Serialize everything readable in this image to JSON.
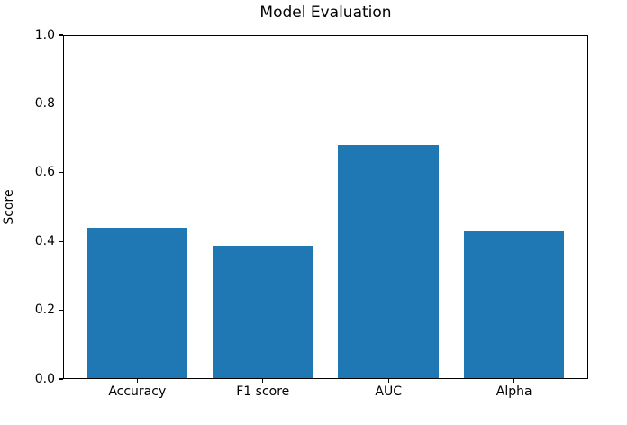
{
  "chart_data": {
    "type": "bar",
    "title": "Model Evaluation",
    "xlabel": "",
    "ylabel": "Score",
    "categories": [
      "Accuracy",
      "F1 score",
      "AUC",
      "Alpha"
    ],
    "values": [
      0.44,
      0.387,
      0.681,
      0.43
    ],
    "bar_color": "#1f77b4",
    "bar_width": 0.8,
    "xlim": [
      -0.59,
      3.59
    ],
    "ylim": [
      0.0,
      1.0
    ],
    "yticks": [
      0.0,
      0.2,
      0.4,
      0.6,
      0.8,
      1.0
    ],
    "ytick_labels": [
      "0.0",
      "0.2",
      "0.4",
      "0.6",
      "0.8",
      "1.0"
    ],
    "grid": false,
    "legend": false,
    "background": "#ffffff",
    "text_color": "#000000"
  }
}
